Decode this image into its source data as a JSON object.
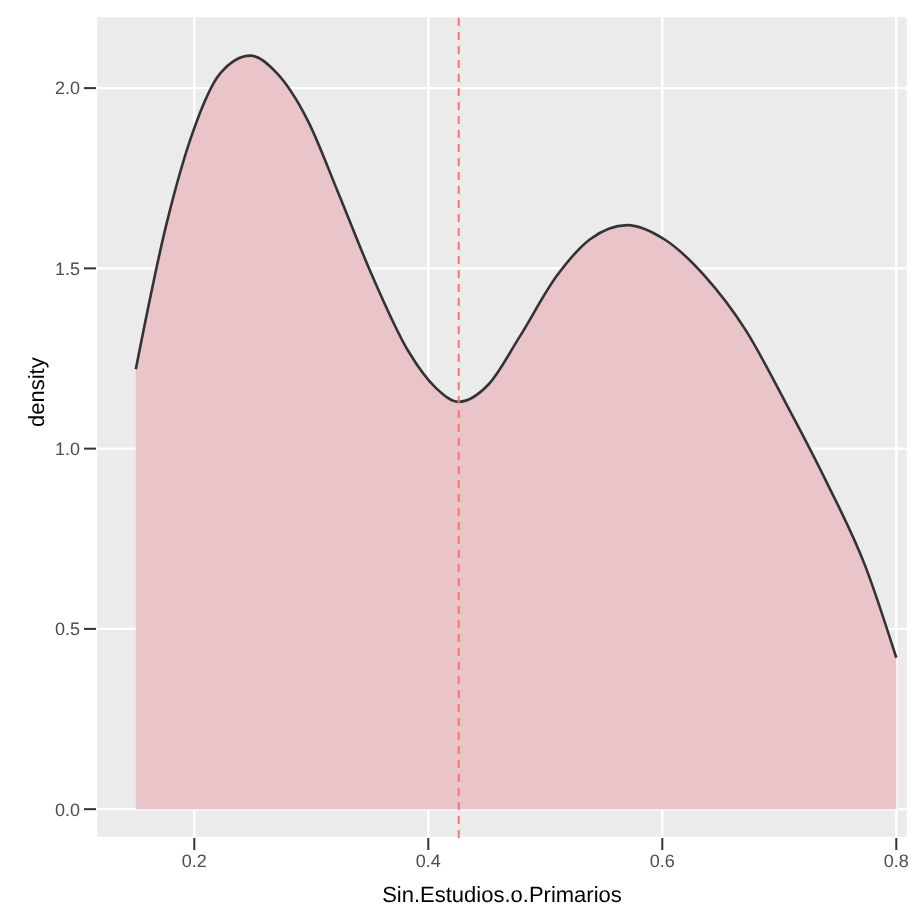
{
  "chart_data": {
    "type": "area",
    "xlabel": "Sin.Estudios.o.Primarios",
    "ylabel": "density",
    "x": [
      0.15,
      0.176,
      0.199,
      0.222,
      0.248,
      0.271,
      0.297,
      0.323,
      0.352,
      0.383,
      0.406,
      0.426,
      0.452,
      0.478,
      0.51,
      0.538,
      0.57,
      0.602,
      0.636,
      0.671,
      0.705,
      0.74,
      0.774,
      0.8
    ],
    "series": [
      {
        "color": "#e9c5c9",
        "values": [
          1.22,
          1.62,
          1.88,
          2.04,
          2.09,
          2.04,
          1.91,
          1.71,
          1.48,
          1.27,
          1.17,
          1.13,
          1.18,
          1.31,
          1.48,
          1.58,
          1.62,
          1.58,
          1.48,
          1.33,
          1.13,
          0.91,
          0.67,
          0.42
        ]
      }
    ],
    "xlim": [
      0.116,
      0.81
    ],
    "ylim": [
      -0.08,
      2.2
    ],
    "xticks": [
      0.2,
      0.4,
      0.6,
      0.8
    ],
    "yticks": [
      {
        "value": 0,
        "label": "0.0"
      },
      {
        "value": 0.5,
        "label": "0.5"
      },
      {
        "value": 1,
        "label": "1.0"
      },
      {
        "value": 1.5,
        "label": "1.5"
      },
      {
        "value": 2,
        "label": "2.0"
      }
    ],
    "ref_lines": [
      {
        "axis": "x",
        "value": 0.426,
        "color": "#f8766d",
        "line_style": "dashed"
      }
    ],
    "grid": true,
    "legend": false
  }
}
